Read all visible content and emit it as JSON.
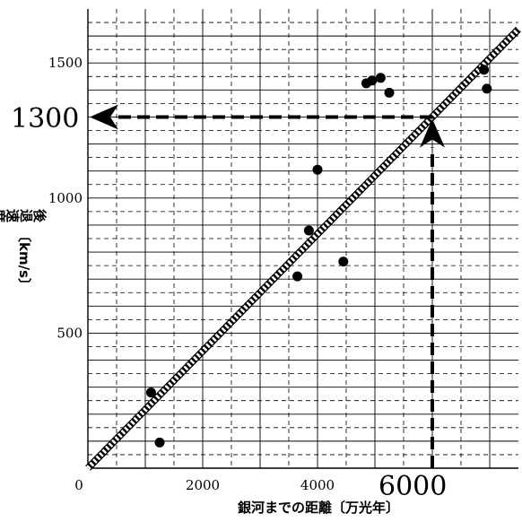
{
  "chart_data": {
    "type": "scatter",
    "xlabel": "銀河までの距離〔万光年〕",
    "ylabel_main": "後退速度",
    "ylabel_unit": "〔km/s〕",
    "xlim": [
      0,
      7500
    ],
    "ylim": [
      0,
      1700
    ],
    "x_ticks": [
      0,
      2000,
      4000
    ],
    "x_tick_labels": [
      "0",
      "2000",
      "4000"
    ],
    "y_ticks": [
      500,
      1000,
      1500
    ],
    "y_tick_labels": [
      "500",
      "1000",
      "1500"
    ],
    "grid": true,
    "points": [
      {
        "x": 1100,
        "y": 280
      },
      {
        "x": 1250,
        "y": 95
      },
      {
        "x": 3650,
        "y": 710
      },
      {
        "x": 3850,
        "y": 880
      },
      {
        "x": 4000,
        "y": 1105
      },
      {
        "x": 4450,
        "y": 765
      },
      {
        "x": 4850,
        "y": 1425
      },
      {
        "x": 4950,
        "y": 1435
      },
      {
        "x": 5100,
        "y": 1445
      },
      {
        "x": 5250,
        "y": 1390
      },
      {
        "x": 6900,
        "y": 1475
      },
      {
        "x": 6950,
        "y": 1405
      }
    ],
    "fit_line": {
      "slope": 0.2167,
      "intercept": 0
    },
    "annotation": {
      "x_value": 6000,
      "y_value": 1300,
      "x_label": "6000",
      "y_label": "1300"
    }
  }
}
